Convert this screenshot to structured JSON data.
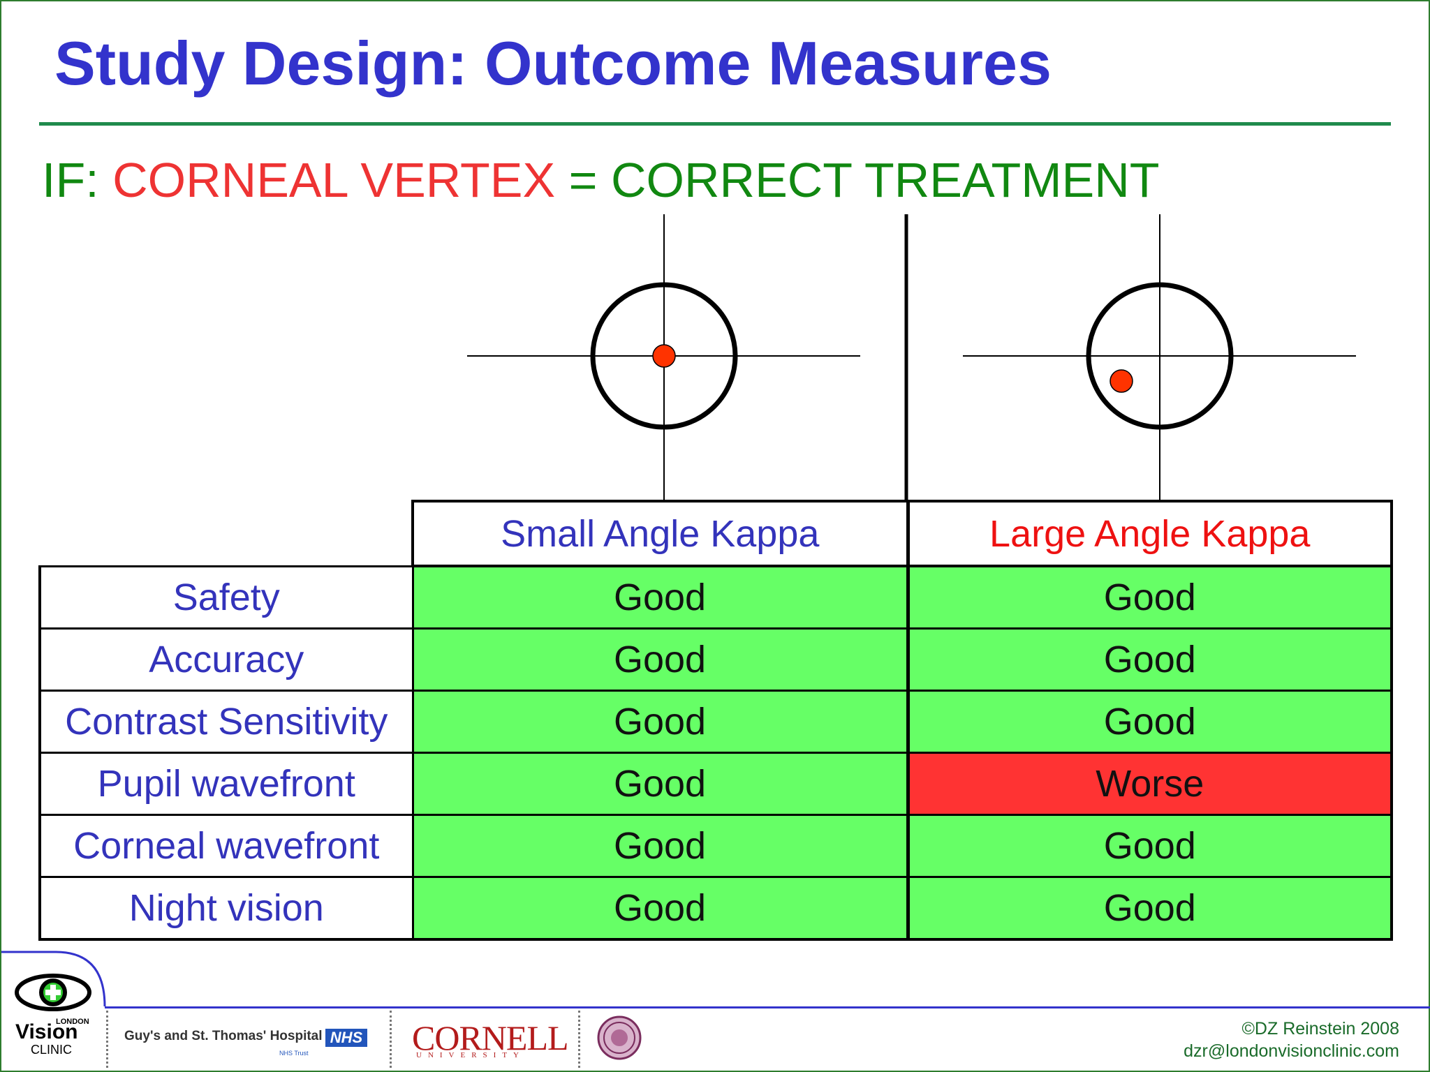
{
  "slide": {
    "title": "Study Design: Outcome Measures",
    "subtitle": {
      "prefix": "IF: ",
      "highlight": "CORNEAL VERTEX",
      "suffix": " = CORRECT TREATMENT"
    }
  },
  "table": {
    "headers": [
      "Small Angle Kappa",
      "Large Angle Kappa"
    ],
    "rows": [
      {
        "label": "Safety",
        "small": "Good",
        "large": "Good"
      },
      {
        "label": "Accuracy",
        "small": "Good",
        "large": "Good"
      },
      {
        "label": "Contrast Sensitivity",
        "small": "Good",
        "large": "Good"
      },
      {
        "label": "Pupil wavefront",
        "small": "Good",
        "large": "Worse"
      },
      {
        "label": "Corneal wavefront",
        "small": "Good",
        "large": "Good"
      },
      {
        "label": "Night vision",
        "small": "Good",
        "large": "Good"
      }
    ]
  },
  "colors": {
    "title": "#3333cc",
    "good": "#66ff66",
    "worse": "#ff3333",
    "dot": "#ff3300"
  },
  "footer": {
    "logo_london": "LONDON",
    "logo_vision": "Vision",
    "logo_clinic": "CLINIC",
    "hospital": "Guy's and St. Thomas' Hospital",
    "nhs": "NHS",
    "nhs_trust": "NHS Trust",
    "cornell": "CORNELL",
    "cornell_sub": "UNIVERSITY",
    "copyright": "©DZ Reinstein 2008",
    "email": "dzr@londonvisionclinic.com"
  }
}
